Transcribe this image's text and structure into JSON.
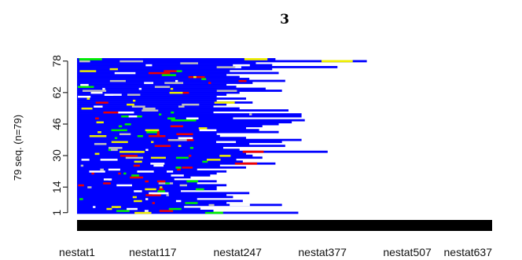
{
  "chart_data": {
    "type": "sequence-index-plot",
    "title": "3",
    "ylabel": "79 seq. (n=79)",
    "n_sequences": 79,
    "y_ticks": [
      "1",
      "14",
      "30",
      "46",
      "62",
      "78"
    ],
    "x_ticks": [
      "nestat1",
      "nestat117",
      "nestat247",
      "nestat377",
      "nestat507",
      "nestat637"
    ],
    "x_positions": [
      1,
      117,
      247,
      377,
      507,
      637
    ],
    "xlim": [
      1,
      637
    ],
    "state_colors": {
      "main": "#0000ff",
      "green": "#00ee00",
      "white": "#ffffff",
      "gray": "#bebebe",
      "red": "#ee0000",
      "yellow": "#eeee00",
      "black": "#000000"
    },
    "sequence_lengths_approx": [
      340,
      210,
      190,
      165,
      315,
      230,
      255,
      185,
      240,
      230,
      265,
      160,
      215,
      215,
      230,
      185,
      215,
      150,
      175,
      205,
      215,
      230,
      185,
      260,
      220,
      305,
      255,
      245,
      285,
      270,
      260,
      385,
      250,
      225,
      320,
      265,
      315,
      345,
      260,
      220,
      215,
      310,
      280,
      260,
      285,
      310,
      330,
      350,
      240,
      345,
      345,
      210,
      325,
      250,
      210,
      230,
      270,
      215,
      260,
      215,
      230,
      250,
      315,
      290,
      245,
      230,
      270,
      320,
      265,
      250,
      230,
      310,
      235,
      300,
      400,
      300,
      275,
      445,
      305
    ],
    "missing_row_length": 637
  }
}
